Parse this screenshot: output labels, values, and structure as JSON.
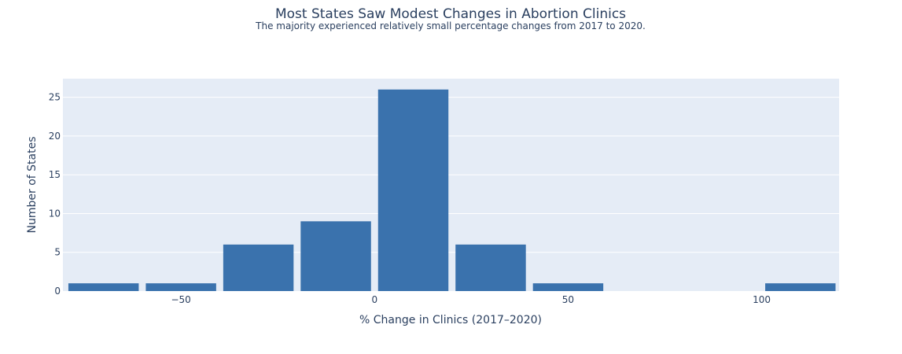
{
  "chart_data": {
    "type": "bar",
    "title": "Most States Saw Modest Changes in Abortion Clinics",
    "subtitle": "The majority experienced relatively small percentage changes from 2017 to 2020.",
    "xlabel": "% Change in Clinics (2017–2020)",
    "ylabel": "Number of States",
    "bins": [
      {
        "start": -80,
        "end": -60,
        "count": 1
      },
      {
        "start": -60,
        "end": -40,
        "count": 1
      },
      {
        "start": -40,
        "end": -20,
        "count": 6
      },
      {
        "start": -20,
        "end": 0,
        "count": 9
      },
      {
        "start": 0,
        "end": 20,
        "count": 26
      },
      {
        "start": 20,
        "end": 40,
        "count": 6
      },
      {
        "start": 40,
        "end": 60,
        "count": 1
      },
      {
        "start": 100,
        "end": 120,
        "count": 1
      }
    ],
    "xlim": [
      -80.5,
      120
    ],
    "ylim": [
      0,
      27.4
    ],
    "xticks": [
      -50,
      0,
      50,
      100
    ],
    "xtick_labels": [
      "−50",
      "0",
      "50",
      "100"
    ],
    "yticks": [
      0,
      5,
      10,
      15,
      20,
      25
    ],
    "ytick_labels": [
      "0",
      "5",
      "10",
      "15",
      "20",
      "25"
    ],
    "grid": true,
    "colors": {
      "bar": "#3a72ad",
      "plot_bg": "#e5ecf6",
      "grid": "#ffffff",
      "text": "#2a3f5f"
    }
  }
}
